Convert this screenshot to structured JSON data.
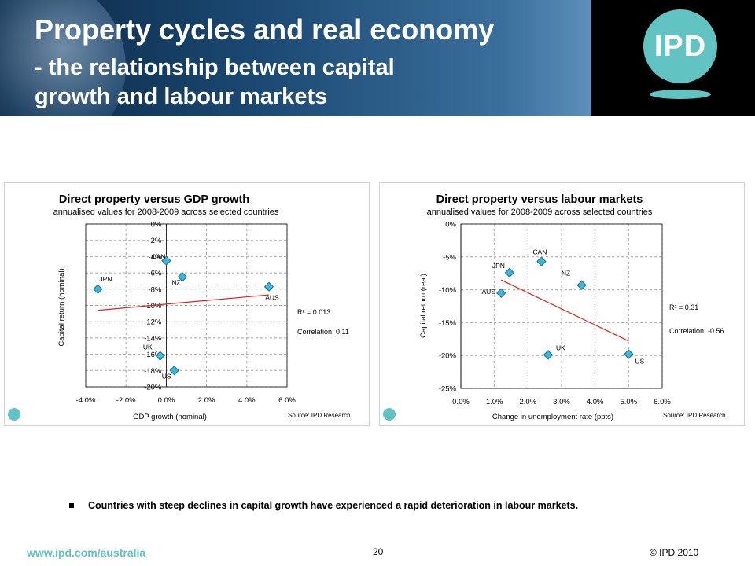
{
  "slide": {
    "title": "Property cycles and real economy",
    "subtitle": "- the relationship between capital\ngrowth and labour markets",
    "logo_text": "IPD",
    "bullet": "Countries with steep declines in capital growth have experienced a rapid deterioration in labour markets.",
    "footer_url": "www.ipd.com/australia",
    "page_number": "20",
    "copyright": "© IPD 2010"
  },
  "chart_data": [
    {
      "type": "scatter",
      "title": "Direct property  versus  GDP  growth",
      "subtitle": "annualised values for 2008-2009 across selected countries",
      "xlabel": "GDP growth (nominal)",
      "ylabel": "Capital return (nominal)",
      "xlim": [
        -4,
        6
      ],
      "ylim": [
        -20,
        0
      ],
      "x_ticks": [
        -4,
        -2,
        0,
        2,
        4,
        6
      ],
      "x_tick_labels": [
        "-4.0%",
        "-2.0%",
        "0.0%",
        "2.0%",
        "4.0%",
        "6.0%"
      ],
      "y_ticks": [
        0,
        -2,
        -4,
        -6,
        -8,
        -10,
        -12,
        -14,
        -16,
        -18,
        -20
      ],
      "y_tick_labels": [
        "0%",
        "-2%",
        "-4%",
        "-6%",
        "-8%",
        "-10%",
        "-12%",
        "-14%",
        "-16%",
        "-18%",
        "-20%"
      ],
      "y_axis_at_x": 0,
      "grid": true,
      "points": [
        {
          "label": "CAN",
          "x": 0.0,
          "y": -4.5
        },
        {
          "label": "NZ",
          "x": 0.8,
          "y": -6.5
        },
        {
          "label": "JPN",
          "x": -3.4,
          "y": -8.0
        },
        {
          "label": "AUS",
          "x": 5.1,
          "y": -7.7
        },
        {
          "label": "UK",
          "x": -0.3,
          "y": -16.2
        },
        {
          "label": "US",
          "x": 0.4,
          "y": -18.0
        }
      ],
      "trendline": {
        "x": [
          -3.4,
          5.1
        ],
        "y": [
          -10.6,
          -8.7
        ]
      },
      "annotations": [
        "R² = 0.013",
        "Correlation: 0.11"
      ],
      "source": "Source: IPD Research."
    },
    {
      "type": "scatter",
      "title": "Direct property  versus  labour markets",
      "subtitle": "annualised values for 2008-2009 across selected countries",
      "xlabel": "Change in unemployment rate (ppts)",
      "ylabel": "Capital return (real)",
      "xlim": [
        0,
        6
      ],
      "ylim": [
        -25,
        0
      ],
      "x_ticks": [
        0,
        1,
        2,
        3,
        4,
        5,
        6
      ],
      "x_tick_labels": [
        "0.0%",
        "1.0%",
        "2.0%",
        "3.0%",
        "4.0%",
        "5.0%",
        "6.0%"
      ],
      "y_ticks": [
        0,
        -5,
        -10,
        -15,
        -20,
        -25
      ],
      "y_tick_labels": [
        "0%",
        "-5%",
        "-10%",
        "-15%",
        "-20%",
        "-25%"
      ],
      "y_axis_at_x": 0,
      "grid": true,
      "points": [
        {
          "label": "CAN",
          "x": 2.4,
          "y": -5.7
        },
        {
          "label": "JPN",
          "x": 1.45,
          "y": -7.4
        },
        {
          "label": "NZ",
          "x": 3.6,
          "y": -9.3
        },
        {
          "label": "AUS",
          "x": 1.2,
          "y": -10.5
        },
        {
          "label": "UK",
          "x": 2.6,
          "y": -19.9
        },
        {
          "label": "US",
          "x": 5.0,
          "y": -19.8
        }
      ],
      "trendline": {
        "x": [
          1.2,
          5.0
        ],
        "y": [
          -8.5,
          -17.8
        ]
      },
      "annotations": [
        "R² = 0.31",
        "Correlation: -0.56"
      ],
      "source": "Source: IPD Research."
    }
  ]
}
